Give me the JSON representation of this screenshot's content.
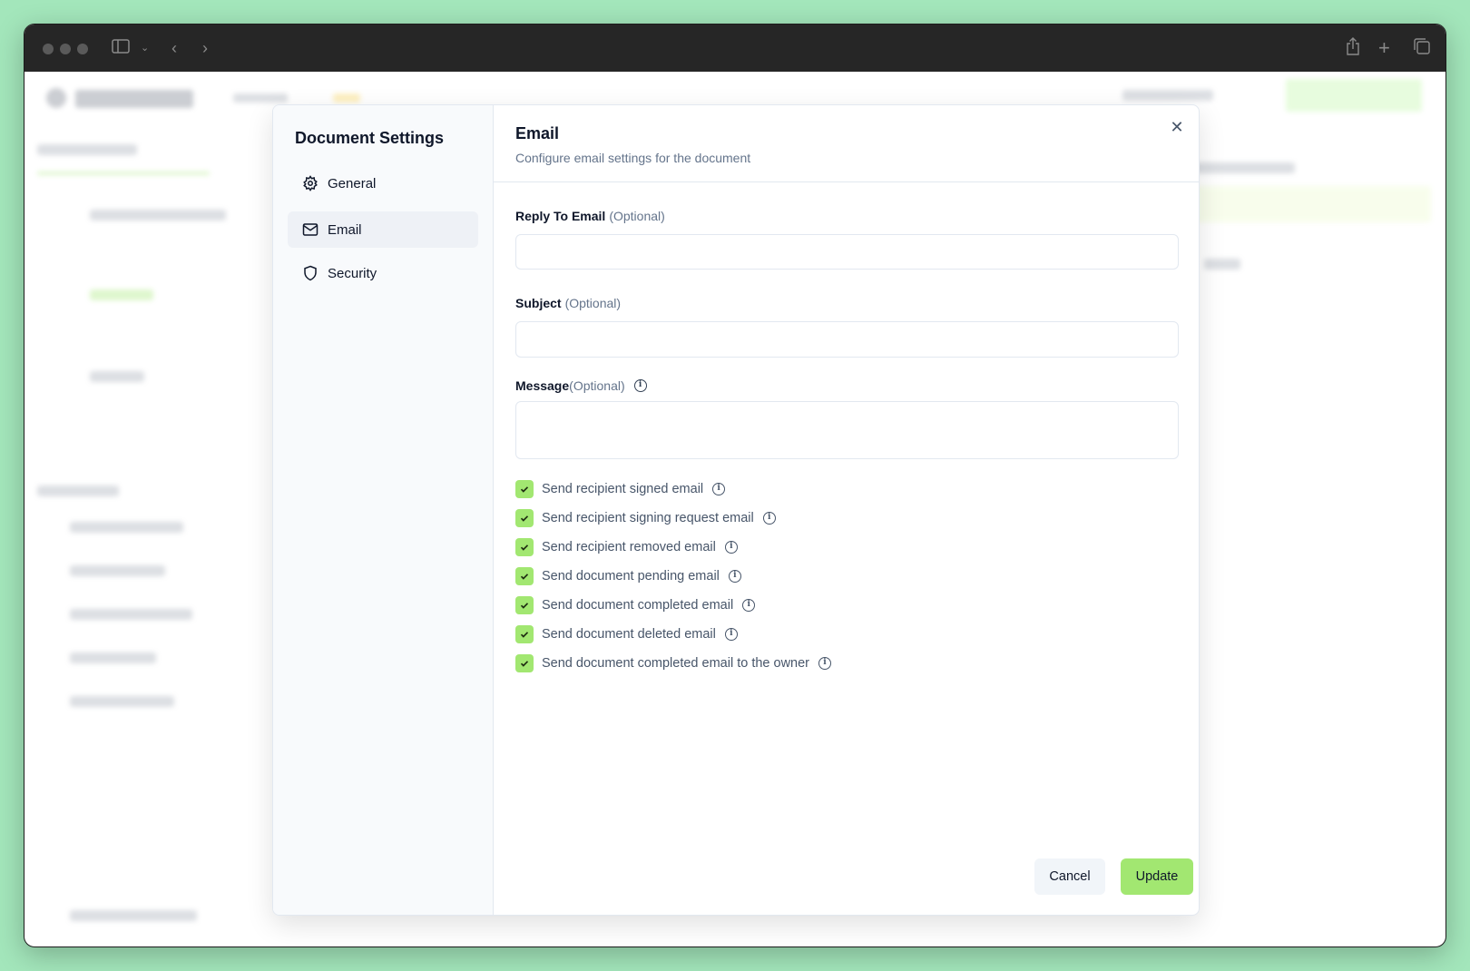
{
  "modal": {
    "sidebar_title": "Document Settings",
    "nav": [
      {
        "label": "General",
        "icon": "gear-icon",
        "active": false
      },
      {
        "label": "Email",
        "icon": "mail-icon",
        "active": true
      },
      {
        "label": "Security",
        "icon": "shield-icon",
        "active": false
      }
    ],
    "title": "Email",
    "subtitle": "Configure email settings for the document",
    "fields": {
      "reply_to": {
        "label": "Reply To Email",
        "optional": "(Optional)",
        "value": ""
      },
      "subject": {
        "label": "Subject",
        "optional": "(Optional)",
        "value": ""
      },
      "message": {
        "label": "Message",
        "optional": "(Optional)",
        "value": ""
      }
    },
    "checkboxes": [
      {
        "label": "Send recipient signed email",
        "checked": true
      },
      {
        "label": "Send recipient signing request email",
        "checked": true
      },
      {
        "label": "Send recipient removed email",
        "checked": true
      },
      {
        "label": "Send document pending email",
        "checked": true
      },
      {
        "label": "Send document completed email",
        "checked": true
      },
      {
        "label": "Send document deleted email",
        "checked": true
      },
      {
        "label": "Send document completed email to the owner",
        "checked": true
      }
    ],
    "cancel_label": "Cancel",
    "update_label": "Update"
  },
  "colors": {
    "accent": "#a2e771",
    "backdrop": "#a3e6bb"
  }
}
